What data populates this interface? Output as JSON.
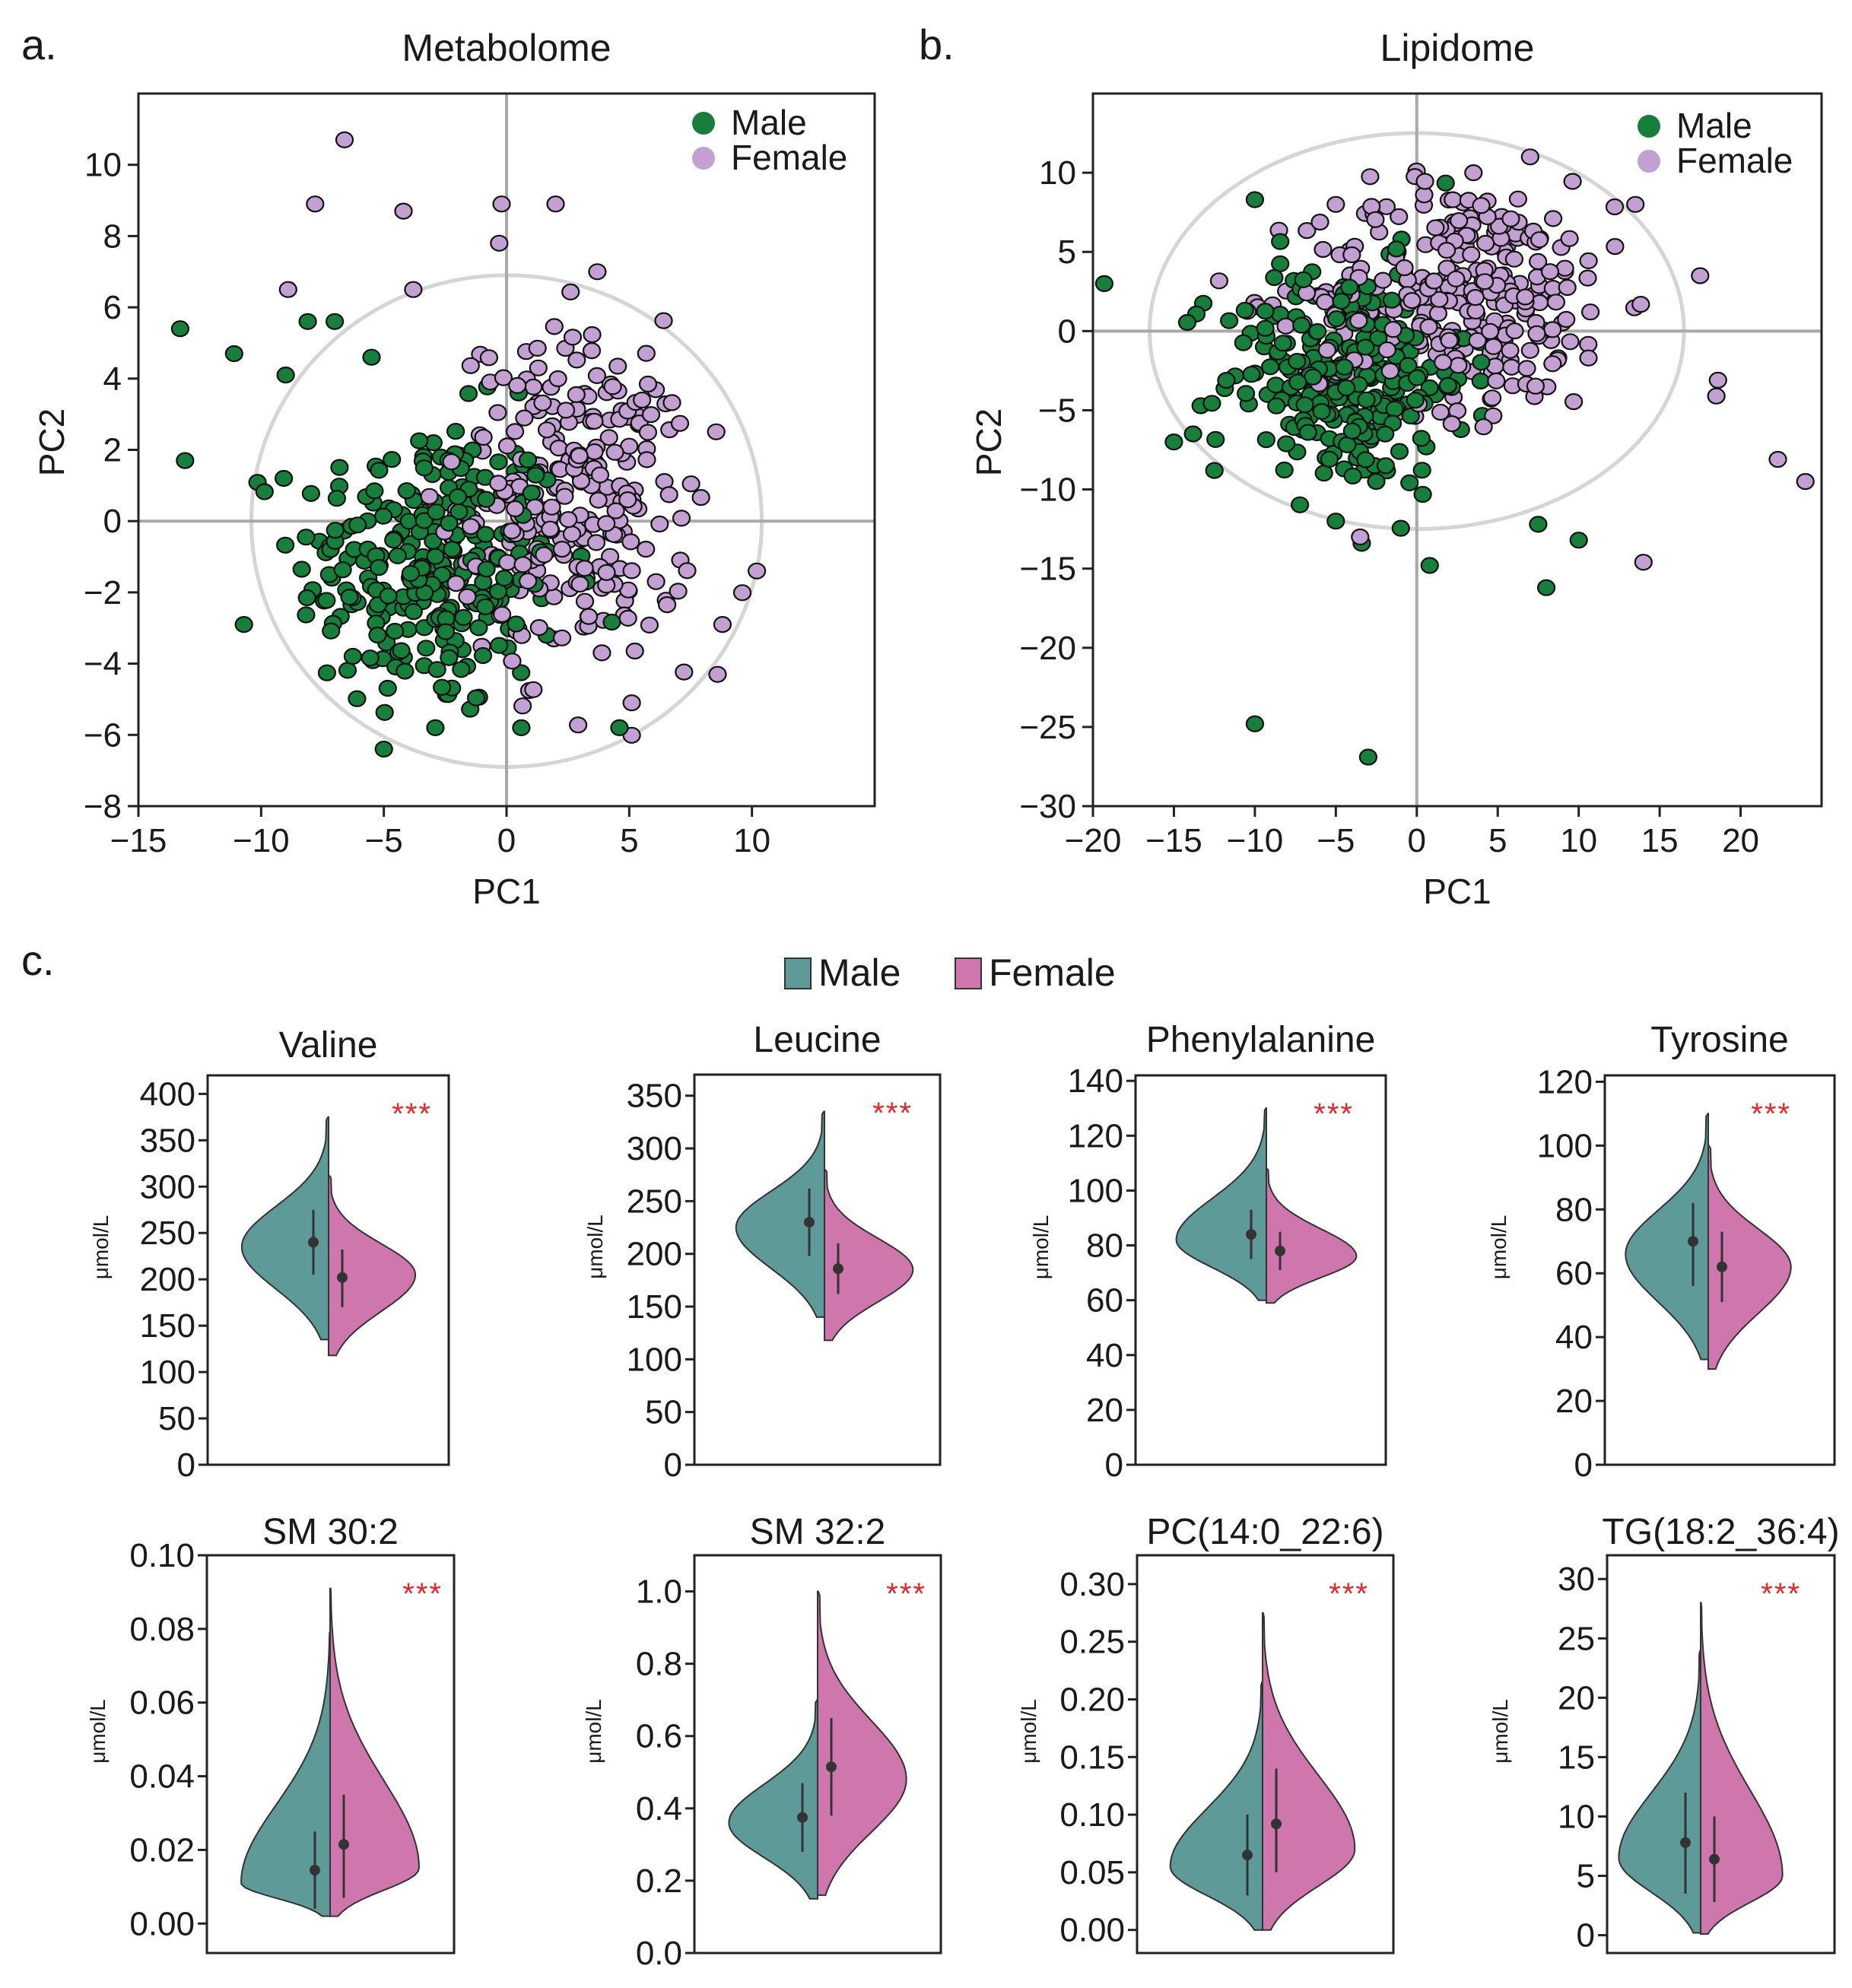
{
  "panels": {
    "a": {
      "letter": "a.",
      "chart_data": {
        "type": "scatter",
        "title": "Metabolome",
        "xlabel": "PC1",
        "ylabel": "PC2",
        "xlim": [
          -15,
          15
        ],
        "ylim": [
          -8,
          12
        ],
        "xticks": [
          -15,
          -10,
          -5,
          0,
          5,
          10
        ],
        "yticks": [
          -8,
          -6,
          -4,
          -2,
          0,
          2,
          4,
          6,
          8,
          10
        ],
        "ellipse": {
          "cx": 0,
          "cy": 0,
          "rx": 10.4,
          "ry": 6.9
        },
        "legend_position": "top-right",
        "series": [
          {
            "name": "Male",
            "color": "#177f3b",
            "n": 270,
            "center": [
              -3.2,
              -1.3
            ],
            "spread": [
              2.7,
              2.1
            ],
            "outliers": [
              [
                -13.3,
                5.4
              ],
              [
                -13.1,
                1.7
              ],
              [
                -11.1,
                4.7
              ],
              [
                -10.7,
                -2.9
              ],
              [
                -7.0,
                5.6
              ],
              [
                -8.1,
                5.6
              ],
              [
                -9.0,
                4.1
              ],
              [
                -5.5,
                4.6
              ],
              [
                0.6,
                -5.8
              ],
              [
                4.6,
                -5.8
              ],
              [
                -5.0,
                -6.4
              ],
              [
                -2.9,
                -5.8
              ]
            ]
          },
          {
            "name": "Female",
            "color": "#c3a0d2",
            "n": 270,
            "center": [
              2.9,
              0.6
            ],
            "spread": [
              2.4,
              2.3
            ],
            "outliers": [
              [
                -6.6,
                10.7
              ],
              [
                -7.8,
                8.9
              ],
              [
                -4.2,
                8.7
              ],
              [
                -0.2,
                8.9
              ],
              [
                2.0,
                8.9
              ],
              [
                -0.3,
                7.8
              ],
              [
                -8.9,
                6.5
              ],
              [
                -3.8,
                6.5
              ],
              [
                3.7,
                7.0
              ],
              [
                10.2,
                -1.4
              ],
              [
                8.6,
                -4.3
              ],
              [
                5.1,
                -5.1
              ],
              [
                8.8,
                -2.9
              ]
            ]
          }
        ]
      }
    },
    "b": {
      "letter": "b.",
      "chart_data": {
        "type": "scatter",
        "title": "Lipidome",
        "xlabel": "PC1",
        "ylabel": "PC2",
        "xlim": [
          -20,
          25
        ],
        "ylim": [
          -30,
          15
        ],
        "xticks": [
          -20,
          -15,
          -10,
          -5,
          0,
          5,
          10,
          15,
          20
        ],
        "yticks": [
          -30,
          -25,
          -20,
          -15,
          -10,
          -5,
          0,
          5,
          10
        ],
        "ellipse": {
          "cx": 0,
          "cy": 0,
          "rx": 16.5,
          "ry": 12.5
        },
        "legend_position": "top-right",
        "series": [
          {
            "name": "Male",
            "color": "#177f3b",
            "n": 250,
            "center": [
              -4.5,
              -3.0
            ],
            "spread": [
              3.8,
              3.6
            ],
            "outliers": [
              [
                -19.3,
                3.0
              ],
              [
                -15.0,
                -7.0
              ],
              [
                -12.5,
                -8.8
              ],
              [
                -10.0,
                -24.8
              ],
              [
                -3.0,
                -26.9
              ],
              [
                0.8,
                -14.8
              ],
              [
                8.0,
                -16.2
              ],
              [
                10.0,
                -13.2
              ],
              [
                7.5,
                -12.2
              ],
              [
                -5.0,
                -12.0
              ],
              [
                -10.0,
                8.3
              ],
              [
                -3.4,
                -13.4
              ]
            ]
          },
          {
            "name": "Female",
            "color": "#c3a0d2",
            "n": 300,
            "center": [
              2.8,
              2.3
            ],
            "spread": [
              4.8,
              3.6
            ],
            "outliers": [
              [
                22.3,
                -8.1
              ],
              [
                24.0,
                -9.5
              ],
              [
                14.0,
                -14.6
              ],
              [
                18.6,
                -3.1
              ],
              [
                18.5,
                -4.1
              ],
              [
                13.5,
                8.0
              ],
              [
                17.5,
                3.5
              ],
              [
                -3.5,
                -13.0
              ],
              [
                7.0,
                11.0
              ],
              [
                3.5,
                10.0
              ],
              [
                -5.0,
                8.0
              ]
            ]
          }
        ]
      }
    },
    "c": {
      "letter": "c.",
      "legend": [
        {
          "name": "Male",
          "color": "#5e9a98"
        },
        {
          "name": "Female",
          "color": "#cf77ac"
        }
      ],
      "unit": "μmol/L",
      "significance": "***",
      "charts": [
        {
          "title": "Valine",
          "type": "split-violin",
          "ylim": [
            0,
            420
          ],
          "yticks": [
            "0",
            "50",
            "100",
            "150",
            "200",
            "250",
            "300",
            "350",
            "400"
          ],
          "male": {
            "mean": 240,
            "sd_low": 205,
            "sd_high": 275,
            "mode": 235,
            "lo": 135,
            "hi": 375,
            "width": 0.62
          },
          "female": {
            "mean": 202,
            "sd_low": 170,
            "sd_high": 232,
            "mode": 205,
            "lo": 118,
            "hi": 312,
            "width": 0.62
          }
        },
        {
          "title": "Leucine",
          "type": "split-violin",
          "ylim": [
            0,
            370
          ],
          "yticks": [
            "0",
            "50",
            "100",
            "150",
            "200",
            "250",
            "300",
            "350"
          ],
          "male": {
            "mean": 230,
            "sd_low": 198,
            "sd_high": 262,
            "mode": 225,
            "lo": 140,
            "hi": 335,
            "width": 0.62
          },
          "female": {
            "mean": 186,
            "sd_low": 162,
            "sd_high": 210,
            "mode": 185,
            "lo": 118,
            "hi": 280,
            "width": 0.62
          }
        },
        {
          "title": "Phenylalanine",
          "type": "split-violin",
          "ylim": [
            0,
            142
          ],
          "yticks": [
            "0",
            "20",
            "40",
            "60",
            "80",
            "100",
            "120",
            "140"
          ],
          "male": {
            "mean": 84,
            "sd_low": 75,
            "sd_high": 93,
            "mode": 82,
            "lo": 60,
            "hi": 130,
            "width": 0.62
          },
          "female": {
            "mean": 78,
            "sd_low": 71,
            "sd_high": 85,
            "mode": 76,
            "lo": 59,
            "hi": 108,
            "width": 0.62
          }
        },
        {
          "title": "Tyrosine",
          "type": "split-violin",
          "ylim": [
            0,
            122
          ],
          "yticks": [
            "0",
            "20",
            "40",
            "60",
            "80",
            "100",
            "120"
          ],
          "male": {
            "mean": 70,
            "sd_low": 56,
            "sd_high": 82,
            "mode": 66,
            "lo": 33,
            "hi": 110,
            "width": 0.62
          },
          "female": {
            "mean": 62,
            "sd_low": 51,
            "sd_high": 73,
            "mode": 62,
            "lo": 30,
            "hi": 100,
            "width": 0.62
          }
        },
        {
          "title": "SM 30:2",
          "type": "split-violin",
          "ylim": [
            -0.008,
            0.1
          ],
          "yticks": [
            "0.00",
            "0.02",
            "0.04",
            "0.06",
            "0.08",
            "0.10"
          ],
          "male": {
            "mean": 0.0145,
            "sd_low": 0.004,
            "sd_high": 0.025,
            "mode": 0.011,
            "lo": 0.002,
            "hi": 0.079,
            "width": 0.62
          },
          "female": {
            "mean": 0.0215,
            "sd_low": 0.007,
            "sd_high": 0.035,
            "mode": 0.015,
            "lo": 0.002,
            "hi": 0.091,
            "width": 0.62
          }
        },
        {
          "title": "SM 32:2",
          "type": "split-violin",
          "ylim": [
            0,
            1.1
          ],
          "yticks": [
            "0.0",
            "0.2",
            "0.4",
            "0.6",
            "0.8",
            "1.0"
          ],
          "male": {
            "mean": 0.375,
            "sd_low": 0.28,
            "sd_high": 0.47,
            "mode": 0.36,
            "lo": 0.15,
            "hi": 0.7,
            "width": 0.62
          },
          "female": {
            "mean": 0.515,
            "sd_low": 0.38,
            "sd_high": 0.65,
            "mode": 0.48,
            "lo": 0.16,
            "hi": 1.0,
            "width": 0.62
          }
        },
        {
          "title": "PC(14:0_22:6)",
          "type": "split-violin",
          "ylim": [
            -0.02,
            0.325
          ],
          "yticks": [
            "0.00",
            "0.05",
            "0.10",
            "0.15",
            "0.20",
            "0.25",
            "0.30"
          ],
          "male": {
            "mean": 0.065,
            "sd_low": 0.03,
            "sd_high": 0.1,
            "mode": 0.055,
            "lo": 0.0,
            "hi": 0.215,
            "width": 0.62
          },
          "female": {
            "mean": 0.092,
            "sd_low": 0.05,
            "sd_high": 0.14,
            "mode": 0.07,
            "lo": 0.0,
            "hi": 0.275,
            "width": 0.62
          }
        },
        {
          "title": "TG(18:2_36:4)",
          "type": "split-violin",
          "ylim": [
            -1.5,
            32
          ],
          "yticks": [
            "0",
            "5",
            "10",
            "15",
            "20",
            "25",
            "30"
          ],
          "male": {
            "mean": 7.8,
            "sd_low": 3.5,
            "sd_high": 12.0,
            "mode": 6.5,
            "lo": 0.2,
            "hi": 24,
            "width": 0.62
          },
          "female": {
            "mean": 6.4,
            "sd_low": 2.8,
            "sd_high": 10.0,
            "mode": 5.0,
            "lo": 0.1,
            "hi": 28,
            "width": 0.62
          }
        }
      ]
    }
  }
}
